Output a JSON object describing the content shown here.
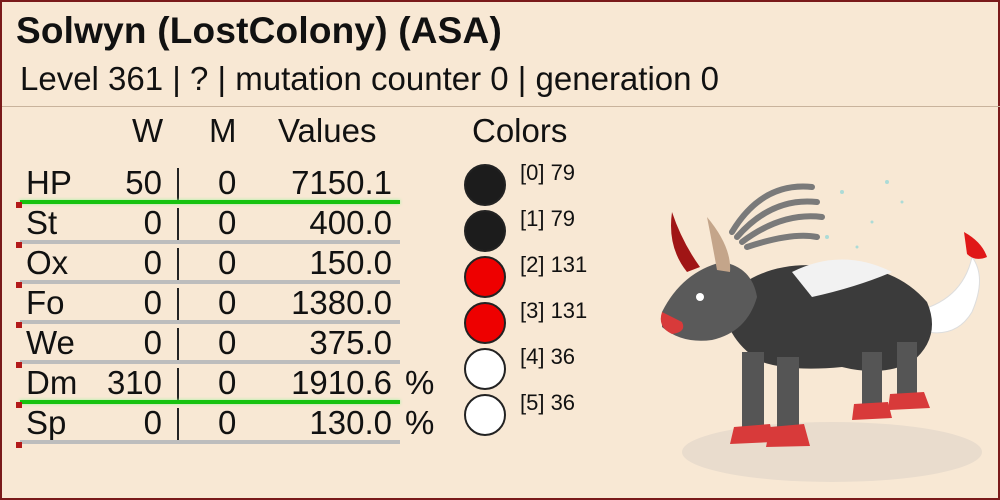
{
  "title": "Solwyn (LostColony) (ASA)",
  "subtitle": "Level 361 | ? | mutation counter 0 | generation 0",
  "headers": {
    "w": "W",
    "m": "M",
    "values": "Values",
    "colors": "Colors"
  },
  "stats": [
    {
      "label": "HP",
      "w": "50",
      "m": "0",
      "value": "7150.1",
      "unit": "",
      "highlight": true
    },
    {
      "label": "St",
      "w": "0",
      "m": "0",
      "value": "400.0",
      "unit": "",
      "highlight": false
    },
    {
      "label": "Ox",
      "w": "0",
      "m": "0",
      "value": "150.0",
      "unit": "",
      "highlight": false
    },
    {
      "label": "Fo",
      "w": "0",
      "m": "0",
      "value": "1380.0",
      "unit": "",
      "highlight": false
    },
    {
      "label": "We",
      "w": "0",
      "m": "0",
      "value": "375.0",
      "unit": "",
      "highlight": false
    },
    {
      "label": "Dm",
      "w": "310",
      "m": "0",
      "value": "1910.6",
      "unit": "%",
      "highlight": true
    },
    {
      "label": "Sp",
      "w": "0",
      "m": "0",
      "value": "130.0",
      "unit": "%",
      "highlight": false
    }
  ],
  "colors": [
    {
      "label": "[0] 79",
      "hex": "#1c1c1c"
    },
    {
      "label": "[1] 79",
      "hex": "#1c1c1c"
    },
    {
      "label": "[2] 131",
      "hex": "#ee0000"
    },
    {
      "label": "[3] 131",
      "hex": "#ee0000"
    },
    {
      "label": "[4] 36",
      "hex": "#ffffff"
    },
    {
      "label": "[5] 36",
      "hex": "#ffffff"
    }
  ],
  "image": {
    "icon": "creature-image"
  }
}
